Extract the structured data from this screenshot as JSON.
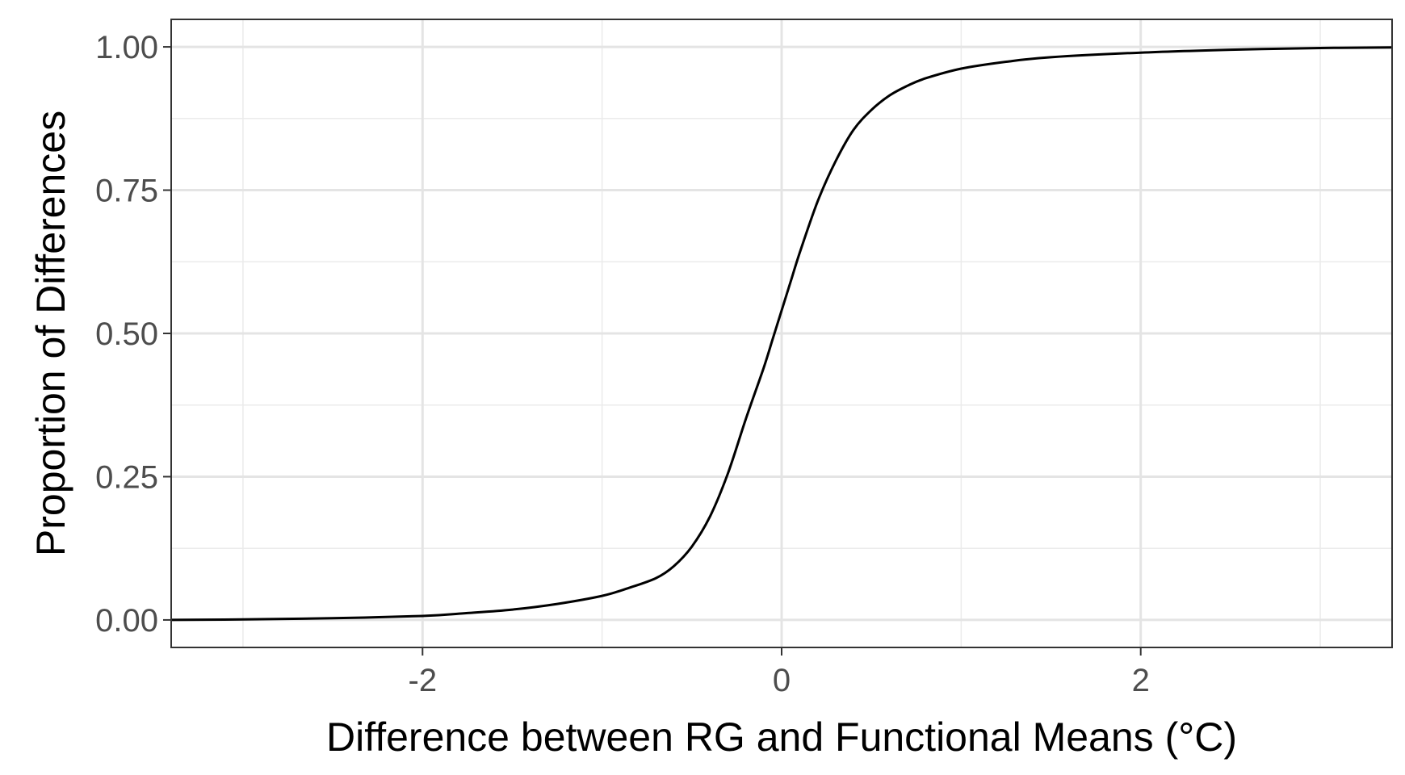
{
  "chart_data": {
    "type": "line",
    "title": "",
    "xlabel": "Difference between RG and Functional Means (°C)",
    "ylabel": "Proportion of Differences",
    "xlim": [
      -3.4,
      3.4
    ],
    "ylim": [
      -0.048,
      1.048
    ],
    "x_ticks": [
      -2,
      0,
      2
    ],
    "x_tick_labels": [
      "-2",
      "0",
      "2"
    ],
    "x_minor_ticks": [
      -3,
      -1,
      1,
      3
    ],
    "y_ticks": [
      0,
      0.25,
      0.5,
      0.75,
      1
    ],
    "y_tick_labels": [
      "0.00",
      "0.25",
      "0.50",
      "0.75",
      "1.00"
    ],
    "y_minor_ticks": [
      0.125,
      0.375,
      0.625,
      0.875
    ],
    "grid": true,
    "line_color": "#000000",
    "series": [
      {
        "x": [
          -3.4,
          -3.0,
          -2.5,
          -2.0,
          -1.75,
          -1.5,
          -1.25,
          -1.0,
          -0.85,
          -0.7,
          -0.6,
          -0.5,
          -0.4,
          -0.3,
          -0.2,
          -0.1,
          -0.05,
          0.0,
          0.05,
          0.1,
          0.2,
          0.3,
          0.4,
          0.5,
          0.6,
          0.7,
          0.8,
          1.0,
          1.25,
          1.5,
          2.0,
          2.5,
          3.0,
          3.4
        ],
        "y": [
          0.0,
          0.001,
          0.003,
          0.007,
          0.012,
          0.018,
          0.028,
          0.042,
          0.056,
          0.073,
          0.094,
          0.128,
          0.18,
          0.255,
          0.35,
          0.44,
          0.49,
          0.54,
          0.59,
          0.64,
          0.73,
          0.8,
          0.855,
          0.89,
          0.915,
          0.932,
          0.945,
          0.962,
          0.974,
          0.982,
          0.99,
          0.995,
          0.998,
          0.999
        ]
      }
    ]
  }
}
